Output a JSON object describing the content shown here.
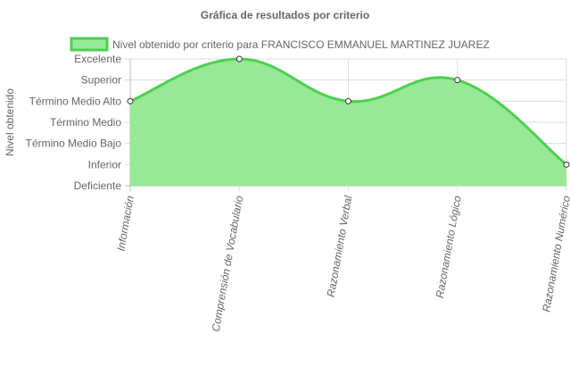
{
  "chart_data": {
    "type": "line",
    "title": "Gráfica de resultados por criterio",
    "ylabel": "Nivel obtenido",
    "xlabel": "",
    "legend_position": "top",
    "grid": true,
    "y_levels": [
      "Deficiente",
      "Inferior",
      "Término Medio Bajo",
      "Término Medio",
      "Término Medio Alto",
      "Superior",
      "Excelente"
    ],
    "categories": [
      "Información",
      "Comprensión de Vocabulario",
      "Razonamiento Verbal",
      "Razonamiento Lógico",
      "Razonamiento Numérico"
    ],
    "ylim": [
      0,
      6
    ],
    "series": [
      {
        "name": "Nivel obtenido por criterio para FRANCISCO EMMANUEL MARTINEZ JUAREZ",
        "values": [
          4,
          6,
          4,
          5,
          1
        ],
        "value_labels": [
          "Término Medio Alto",
          "Excelente",
          "Término Medio Alto",
          "Superior",
          "Inferior"
        ],
        "fill_color": "#98e898",
        "line_color": "#4cd04c",
        "point_fill": "#ffffff",
        "point_stroke": "#333333"
      }
    ]
  }
}
